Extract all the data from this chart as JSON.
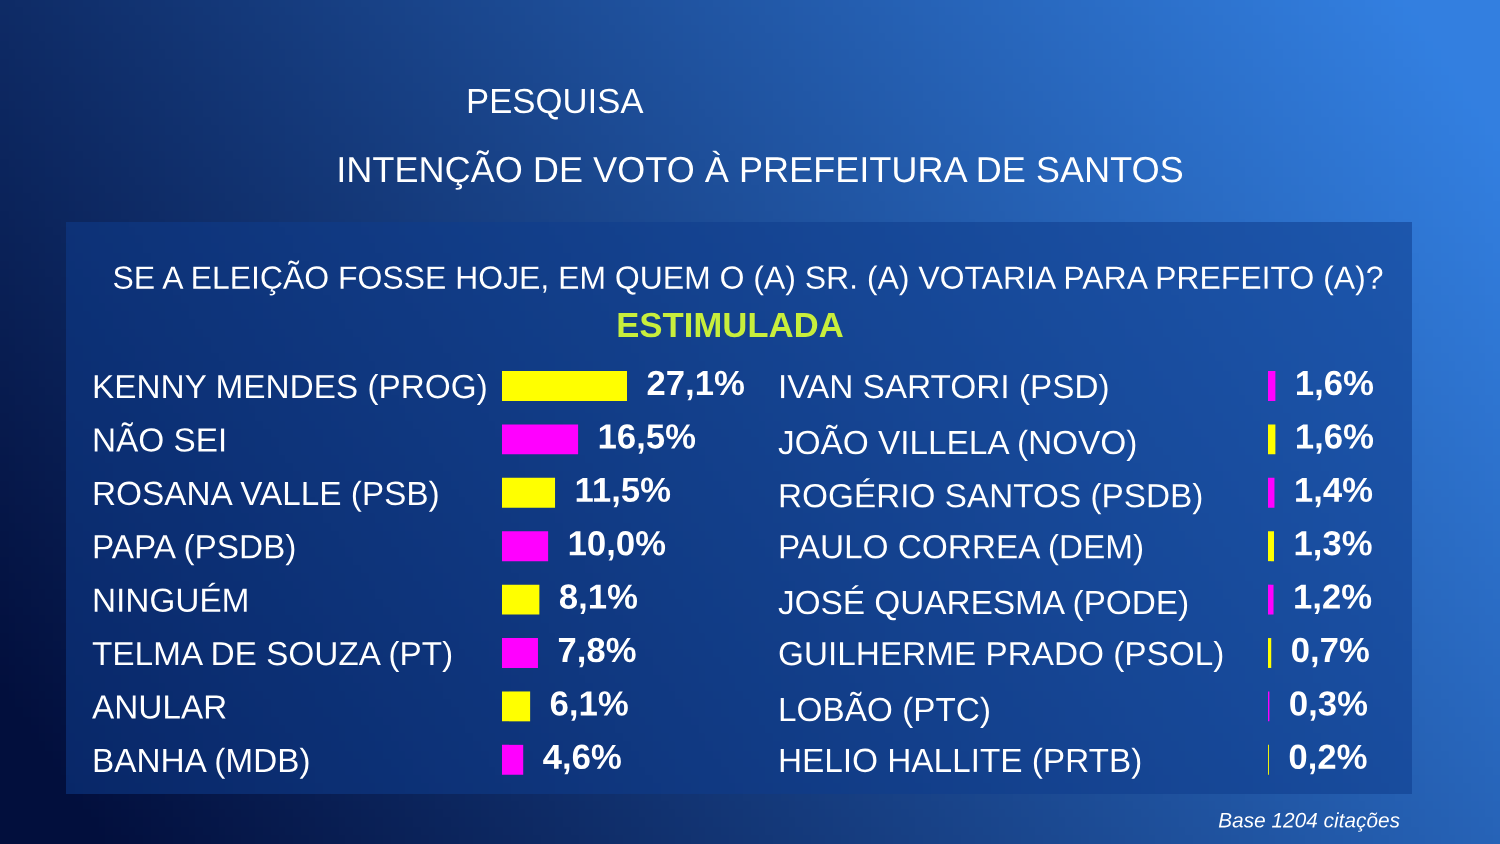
{
  "chart_data": [
    {
      "type": "bar",
      "orientation": "horizontal",
      "title": "PESQUISA",
      "subtitle": "INTENÇÃO DE VOTO À PREFEITURA DE SANTOS",
      "annotations": [
        "SE A ELEIÇÃO FOSSE HOJE, EM QUEM O (A) SR. (A) VOTARIA PARA PREFEITO (A)?",
        "ESTIMULADA"
      ],
      "categories": [
        "KENNY MENDES (PROG)",
        "NÃO SEI",
        "ROSANA VALLE (PSB)",
        "PAPA (PSDB)",
        "NINGUÉM",
        "TELMA DE SOUZA (PT)",
        "ANULAR",
        "BANHA (MDB)"
      ],
      "values": [
        27.1,
        16.5,
        11.5,
        10.0,
        8.1,
        7.8,
        6.1,
        4.6
      ],
      "colors": [
        "#ffff00",
        "#ff00ff",
        "#ffff00",
        "#ff00ff",
        "#ffff00",
        "#ff00ff",
        "#ffff00",
        "#ff00ff"
      ],
      "value_labels": [
        "27,1%",
        "16,5%",
        "11,5%",
        "10,0%",
        "8,1%",
        "7,8%",
        "6,1%",
        "4,6%"
      ]
    },
    {
      "type": "bar",
      "orientation": "horizontal",
      "annotations": [
        "Base 1204 citações"
      ],
      "categories": [
        "IVAN SARTORI (PSD)",
        "JOÃO VILLELA (NOVO)",
        "ROGÉRIO SANTOS (PSDB)",
        "PAULO CORREA (DEM)",
        "JOSÉ QUARESMA (PODE)",
        "GUILHERME PRADO (PSOL)",
        "LOBÃO (PTC)",
        "HELIO HALLITE (PRTB)"
      ],
      "values": [
        1.6,
        1.6,
        1.4,
        1.3,
        1.2,
        0.7,
        0.3,
        0.2
      ],
      "colors": [
        "#ff00ff",
        "#ffff00",
        "#ff00ff",
        "#ffff00",
        "#ff00ff",
        "#ffff00",
        "#ff00ff",
        "#ffff00"
      ],
      "value_labels": [
        "1,6%",
        "1,6%",
        "1,4%",
        "1,3%",
        "1,2%",
        "0,7%",
        "0,3%",
        "0,2%"
      ]
    }
  ]
}
